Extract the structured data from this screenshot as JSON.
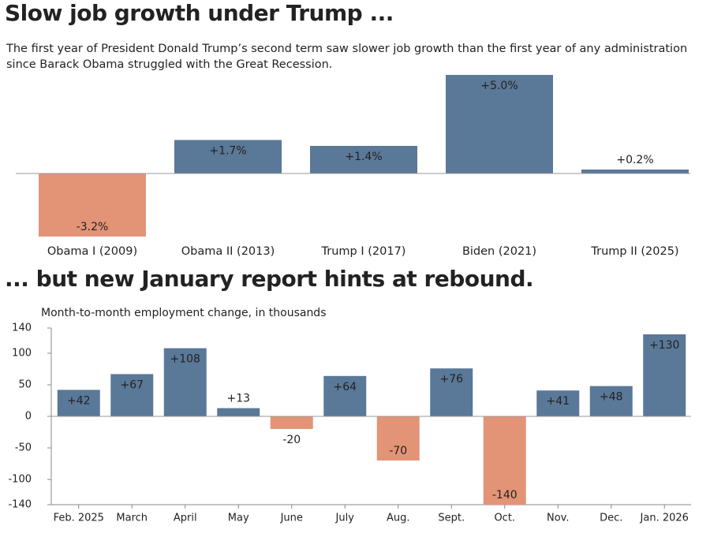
{
  "chart_data": [
    {
      "type": "bar",
      "title": "Slow job growth under Trump ...",
      "subtitle": "The first year of President Donald Trump’s second term saw slower job growth than the first year of any administration since Barack Obama struggled with the Great Recession.",
      "categories": [
        "Obama I (2009)",
        "Obama II (2013)",
        "Trump I (2017)",
        "Biden (2021)",
        "Trump II (2025)"
      ],
      "values": [
        -3.2,
        1.7,
        1.4,
        5.0,
        0.2
      ],
      "value_labels": [
        "-3.2%",
        "+1.7%",
        "+1.4%",
        "+5.0%",
        "+0.2%"
      ],
      "color": "#5a7898",
      "negative_color": "#e39476"
    },
    {
      "type": "bar",
      "title": "... but new January report hints at rebound.",
      "y_label": "Month-to-month employment change, in thousands",
      "categories": [
        "Feb. 2025",
        "March",
        "April",
        "May",
        "June",
        "July",
        "Aug.",
        "Sept.",
        "Oct.",
        "Nov.",
        "Dec.",
        "Jan. 2026"
      ],
      "values": [
        42,
        67,
        108,
        13,
        -20,
        64,
        -70,
        76,
        -140,
        41,
        48,
        130
      ],
      "value_labels": [
        "+42",
        "+67",
        "+108",
        "+13",
        "-20",
        "+64",
        "-70",
        "+76",
        "-140",
        "+41",
        "+48",
        "+130"
      ],
      "color": "#5a7898",
      "negative_color": "#e39476",
      "ylim": [
        -140,
        140
      ],
      "yticks": [
        140,
        100,
        50,
        0,
        -50,
        -100,
        -140
      ]
    }
  ]
}
